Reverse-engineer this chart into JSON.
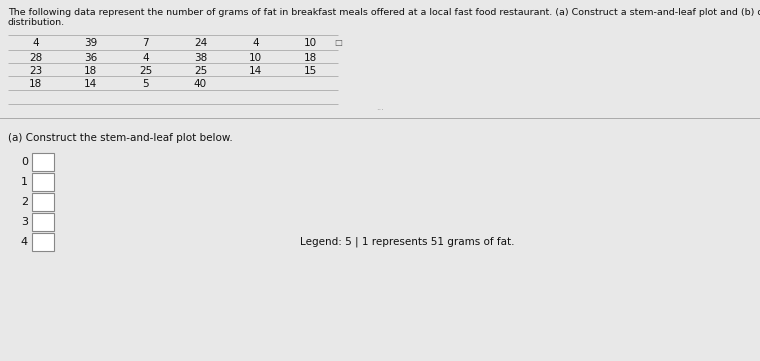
{
  "title_line1": "The following data represent the number of grams of fat in breakfast meals offered at a local fast food restaurant. (a) Construct a stem-and-leaf plot and (b) describe the shape of t",
  "title_line2": "distribution.",
  "table_data": [
    [
      "4",
      "39",
      "7",
      "24",
      "4",
      "10"
    ],
    [
      "28",
      "36",
      "4",
      "38",
      "10",
      "18"
    ],
    [
      "23",
      "18",
      "25",
      "25",
      "14",
      "15"
    ],
    [
      "18",
      "14",
      "5",
      "40",
      "",
      ""
    ]
  ],
  "section_label": "(a) Construct the stem-and-leaf plot below.",
  "stems": [
    "0",
    "1",
    "2",
    "3",
    "4"
  ],
  "legend_text": "Legend: 5 | 1 represents 51 grams of fat.",
  "bg_color": "#e8e8e8",
  "text_color": "#111111",
  "title_fontsize": 6.8,
  "table_fontsize": 7.5,
  "label_fontsize": 7.5,
  "stem_fontsize": 8.0,
  "legend_fontsize": 7.5,
  "separator_color": "#aaaaaa",
  "line_color": "#aaaaaa",
  "box_edge_color": "#888888",
  "circle_color": "#555555"
}
